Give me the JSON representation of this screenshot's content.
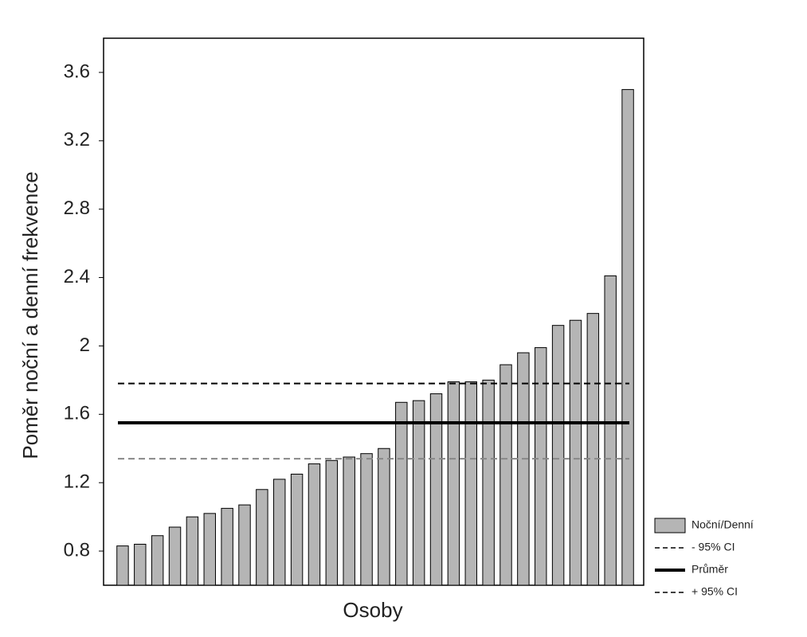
{
  "chart_data": {
    "type": "bar",
    "x_label": "Osoby",
    "y_label": "Poměr noční a denní frekvence",
    "categories": [
      null,
      null,
      null,
      null,
      null,
      null,
      null,
      null,
      null,
      null,
      null,
      null,
      null,
      null,
      null,
      null,
      null,
      null,
      null,
      null,
      null,
      null,
      null,
      null,
      null,
      null,
      null,
      null,
      null,
      null
    ],
    "series": [
      {
        "name": "Noční/Denní",
        "color": "#b5b5b5",
        "values": [
          0.83,
          0.84,
          0.89,
          0.94,
          1.0,
          1.02,
          1.05,
          1.07,
          1.16,
          1.22,
          1.25,
          1.31,
          1.33,
          1.35,
          1.37,
          1.4,
          1.67,
          1.68,
          1.72,
          1.79,
          1.79,
          1.8,
          1.89,
          1.96,
          1.99,
          2.12,
          2.15,
          2.19,
          2.41,
          3.5
        ]
      }
    ],
    "reference_lines": [
      {
        "name": "- 95% CI",
        "value": 1.34,
        "color": "#888888",
        "style": "dashed"
      },
      {
        "name": "Průměr",
        "value": 1.55,
        "color": "#000000",
        "style": "solid"
      },
      {
        "name": "+ 95% CI",
        "value": 1.78,
        "color": "#000000",
        "style": "dashed"
      }
    ],
    "ylim": [
      0.6,
      3.8
    ],
    "yticks": [
      0.8,
      1.2,
      1.6,
      2.0,
      2.4,
      2.8,
      3.2,
      3.6
    ],
    "grid": false
  }
}
